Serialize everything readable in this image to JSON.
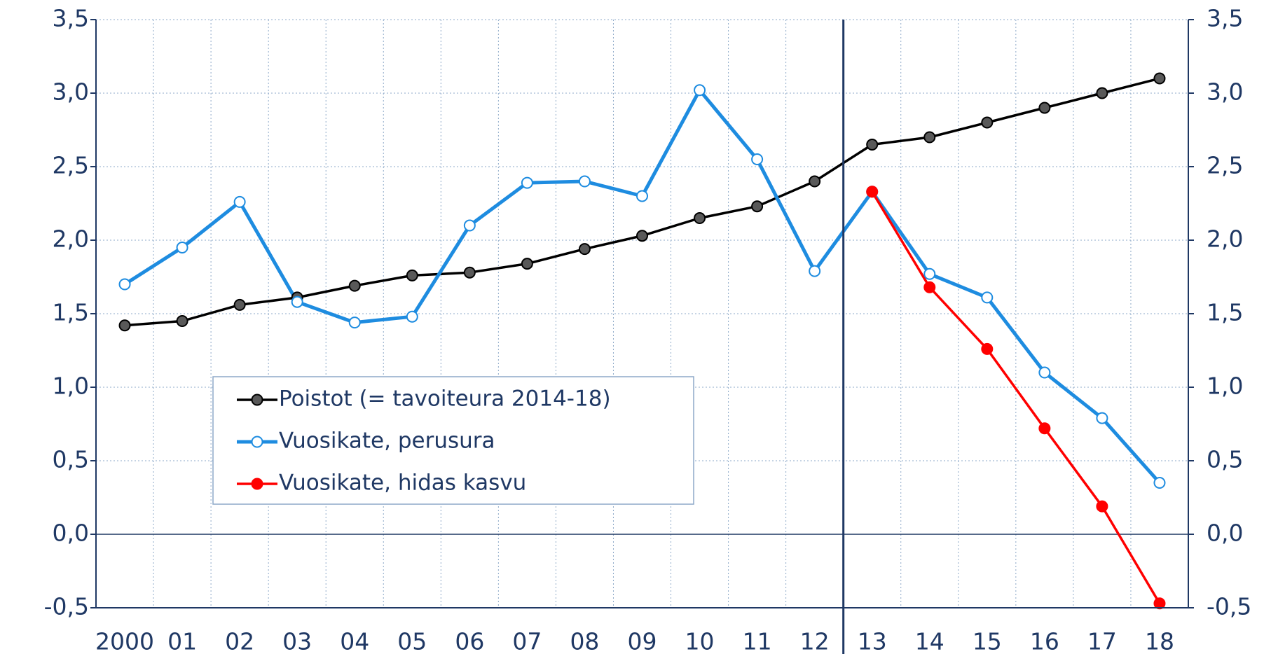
{
  "chart_data": {
    "type": "line",
    "categories": [
      "2000",
      "01",
      "02",
      "03",
      "04",
      "05",
      "06",
      "07",
      "08",
      "09",
      "10",
      "11",
      "12",
      "13",
      "14",
      "15",
      "16",
      "17",
      "18"
    ],
    "series": [
      {
        "name": "Poistot (= tavoiteura 2014-18)",
        "color": "#000000",
        "marker_fill": "#595959",
        "values": [
          1.42,
          1.45,
          1.56,
          1.61,
          1.69,
          1.76,
          1.78,
          1.84,
          1.94,
          2.03,
          2.15,
          2.23,
          2.4,
          2.65,
          2.7,
          2.8,
          2.9,
          3.0,
          3.1
        ]
      },
      {
        "name": "Vuosikate, perusura",
        "color": "#1e8ce0",
        "marker_fill": "#ffffff",
        "values": [
          1.7,
          1.95,
          2.26,
          1.58,
          1.44,
          1.48,
          2.1,
          2.39,
          2.4,
          2.3,
          3.02,
          2.55,
          1.79,
          2.33,
          1.77,
          1.61,
          1.1,
          0.79,
          0.35
        ]
      },
      {
        "name": "Vuosikate, hidas kasvu",
        "color": "#ff0000",
        "marker_fill": "#ff0000",
        "values": [
          null,
          null,
          null,
          null,
          null,
          null,
          null,
          null,
          null,
          null,
          null,
          null,
          null,
          2.33,
          1.68,
          1.26,
          0.72,
          0.19,
          -0.47
        ]
      }
    ],
    "ylim": [
      -0.5,
      3.5
    ],
    "yticks": [
      {
        "value": -0.5,
        "label": "-0,5"
      },
      {
        "value": 0,
        "label": "0,0"
      },
      {
        "value": 0.5,
        "label": "0,5"
      },
      {
        "value": 1,
        "label": "1,0"
      },
      {
        "value": 1.5,
        "label": "1,5"
      },
      {
        "value": 2,
        "label": "2,0"
      },
      {
        "value": 2.5,
        "label": "2,5"
      },
      {
        "value": 3,
        "label": "3,0"
      },
      {
        "value": 3.5,
        "label": "3,5"
      }
    ],
    "y2lim": [
      -0.5,
      3.5
    ],
    "y2ticks": [
      {
        "value": -0.5,
        "label": "-0,5"
      },
      {
        "value": 0,
        "label": "0,0"
      },
      {
        "value": 0.5,
        "label": "0,5"
      },
      {
        "value": 1,
        "label": "1,0"
      },
      {
        "value": 1.5,
        "label": "1,5"
      },
      {
        "value": 2,
        "label": "2,0"
      },
      {
        "value": 2.5,
        "label": "2,5"
      },
      {
        "value": 3,
        "label": "3,0"
      },
      {
        "value": 3.5,
        "label": "3,5"
      }
    ],
    "grid": true
  }
}
